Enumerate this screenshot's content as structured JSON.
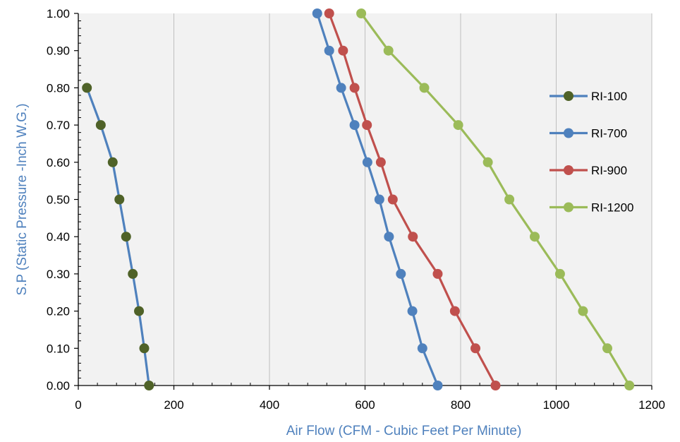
{
  "chart_data": {
    "type": "line",
    "title": "",
    "xlabel": "Air Flow (CFM - Cubic Feet Per Minute)",
    "ylabel": "S.P (Static Pressure -Inch W.G.)",
    "xlim": [
      0,
      1200
    ],
    "ylim": [
      0,
      1.0
    ],
    "x_ticks": [
      "0",
      "200",
      "400",
      "600",
      "800",
      "1000",
      "1200"
    ],
    "y_ticks": [
      "0.00",
      "0.10",
      "0.20",
      "0.30",
      "0.40",
      "0.50",
      "0.60",
      "0.70",
      "0.80",
      "0.90",
      "1.00"
    ],
    "grid": "vertical major gridlines",
    "legend_position": "right",
    "plot_background": "#F2F2F2",
    "axis_title_color": "#4F81BD",
    "series": [
      {
        "name": "RI-100",
        "line_color": "#4F81BD",
        "marker_color": "#4F6228",
        "points": [
          {
            "x": 148,
            "y": 0.0
          },
          {
            "x": 138,
            "y": 0.1
          },
          {
            "x": 127,
            "y": 0.2
          },
          {
            "x": 114,
            "y": 0.3
          },
          {
            "x": 100,
            "y": 0.4
          },
          {
            "x": 86,
            "y": 0.5
          },
          {
            "x": 72,
            "y": 0.6
          },
          {
            "x": 47,
            "y": 0.7
          },
          {
            "x": 18,
            "y": 0.8
          }
        ]
      },
      {
        "name": "RI-700",
        "line_color": "#4F81BD",
        "marker_color": "#4F81BD",
        "points": [
          {
            "x": 752,
            "y": 0.0
          },
          {
            "x": 720,
            "y": 0.1
          },
          {
            "x": 699,
            "y": 0.2
          },
          {
            "x": 675,
            "y": 0.3
          },
          {
            "x": 650,
            "y": 0.4
          },
          {
            "x": 630,
            "y": 0.5
          },
          {
            "x": 605,
            "y": 0.6
          },
          {
            "x": 578,
            "y": 0.7
          },
          {
            "x": 550,
            "y": 0.8
          },
          {
            "x": 525,
            "y": 0.9
          },
          {
            "x": 500,
            "y": 1.0
          }
        ]
      },
      {
        "name": "RI-900",
        "line_color": "#C0504D",
        "marker_color": "#C0504D",
        "points": [
          {
            "x": 873,
            "y": 0.0
          },
          {
            "x": 831,
            "y": 0.1
          },
          {
            "x": 788,
            "y": 0.2
          },
          {
            "x": 752,
            "y": 0.3
          },
          {
            "x": 700,
            "y": 0.4
          },
          {
            "x": 658,
            "y": 0.5
          },
          {
            "x": 633,
            "y": 0.6
          },
          {
            "x": 604,
            "y": 0.7
          },
          {
            "x": 578,
            "y": 0.8
          },
          {
            "x": 554,
            "y": 0.9
          },
          {
            "x": 525,
            "y": 1.0
          }
        ]
      },
      {
        "name": "RI-1200",
        "line_color": "#9BBB59",
        "marker_color": "#9BBB59",
        "points": [
          {
            "x": 1153,
            "y": 0.0
          },
          {
            "x": 1107,
            "y": 0.1
          },
          {
            "x": 1056,
            "y": 0.2
          },
          {
            "x": 1008,
            "y": 0.3
          },
          {
            "x": 955,
            "y": 0.4
          },
          {
            "x": 902,
            "y": 0.5
          },
          {
            "x": 857,
            "y": 0.6
          },
          {
            "x": 795,
            "y": 0.7
          },
          {
            "x": 724,
            "y": 0.8
          },
          {
            "x": 649,
            "y": 0.9
          },
          {
            "x": 592,
            "y": 1.0
          }
        ]
      }
    ]
  }
}
